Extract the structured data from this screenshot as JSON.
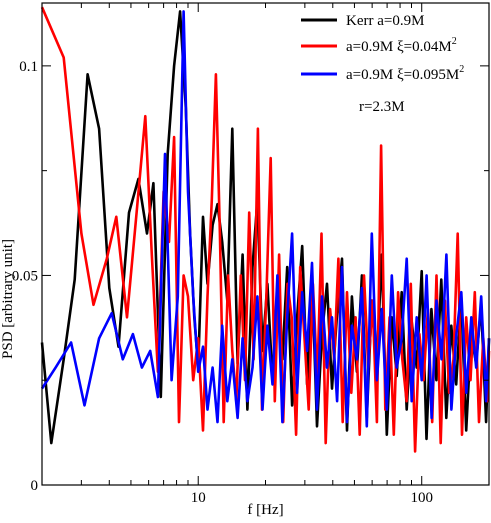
{
  "chart_data": {
    "type": "line",
    "xscale": "log",
    "xlim": [
      2,
      200
    ],
    "ylim": [
      0,
      0.115
    ],
    "xlabel": "f [Hz]",
    "ylabel": "PSD [arbitrary unit]",
    "grid": false,
    "legend_position": "top-right",
    "x_ticks": [
      {
        "value": 10,
        "label": "10"
      },
      {
        "value": 100,
        "label": "100"
      }
    ],
    "y_ticks": [
      {
        "value": 0,
        "label": "0"
      },
      {
        "value": 0.05,
        "label": "0.05"
      },
      {
        "value": 0.1,
        "label": "0.1"
      }
    ],
    "annotations": [
      {
        "text": "r=2.3M"
      }
    ],
    "series": [
      {
        "name_main": "Kerr a=0.9M",
        "name_sup": "",
        "color": "#000000",
        "x": [
          2.0,
          2.2,
          2.5,
          2.8,
          3.2,
          3.6,
          4.0,
          4.4,
          4.9,
          5.4,
          5.9,
          6.3,
          6.8,
          7.3,
          7.8,
          8.3,
          8.8,
          9.2,
          9.6,
          10.0,
          10.5,
          11.0,
          11.6,
          12.2,
          12.8,
          13.5,
          14.2,
          15.0,
          15.8,
          16.6,
          17.5,
          18.4,
          19.4,
          20.4,
          21.5,
          22.6,
          23.8,
          25.0,
          26.3,
          27.7,
          29.2,
          30.7,
          32.3,
          34.0,
          35.8,
          37.7,
          39.7,
          41.8,
          44.0,
          46.3,
          48.7,
          51.3,
          54.0,
          56.8,
          59.8,
          63.0,
          66.3,
          69.8,
          73.5,
          77.3,
          81.4,
          85.7,
          90.2,
          95.0,
          100.0,
          105.0,
          110.5,
          116.3,
          122.4,
          128.8,
          135.6,
          142.7,
          150.2,
          158.1,
          166.4,
          175.2,
          184.4,
          194.1,
          200.0
        ],
        "values": [
          0.034,
          0.01,
          0.03,
          0.049,
          0.098,
          0.085,
          0.047,
          0.033,
          0.065,
          0.073,
          0.06,
          0.072,
          0.021,
          0.079,
          0.1,
          0.113,
          0.09,
          0.06,
          0.04,
          0.028,
          0.064,
          0.048,
          0.062,
          0.067,
          0.058,
          0.044,
          0.085,
          0.029,
          0.055,
          0.018,
          0.052,
          0.068,
          0.032,
          0.048,
          0.025,
          0.045,
          0.03,
          0.052,
          0.019,
          0.04,
          0.057,
          0.024,
          0.05,
          0.014,
          0.036,
          0.048,
          0.023,
          0.041,
          0.054,
          0.013,
          0.045,
          0.027,
          0.05,
          0.016,
          0.044,
          0.03,
          0.055,
          0.012,
          0.04,
          0.026,
          0.046,
          0.018,
          0.039,
          0.028,
          0.051,
          0.011,
          0.042,
          0.025,
          0.049,
          0.016,
          0.038,
          0.024,
          0.045,
          0.013,
          0.036,
          0.029,
          0.043,
          0.015,
          0.035
        ]
      },
      {
        "name_main": "a=0.9M   ξ=0.04M",
        "name_sup": "2",
        "color": "#ff0000",
        "x": [
          2.0,
          2.5,
          3.0,
          3.4,
          3.9,
          4.3,
          4.8,
          5.3,
          5.8,
          6.2,
          6.6,
          7.0,
          7.4,
          7.8,
          8.2,
          8.6,
          9.0,
          9.5,
          10.0,
          10.5,
          11.0,
          11.5,
          12.0,
          12.5,
          13.0,
          13.6,
          14.2,
          14.8,
          15.5,
          16.2,
          16.9,
          17.7,
          18.5,
          19.3,
          20.2,
          21.1,
          22.0,
          23.0,
          24.0,
          25.1,
          26.2,
          27.4,
          28.6,
          29.9,
          31.2,
          32.6,
          34.1,
          35.6,
          37.2,
          38.9,
          40.6,
          42.4,
          44.3,
          46.3,
          48.4,
          50.6,
          52.8,
          55.2,
          57.7,
          60.3,
          63.0,
          65.8,
          68.7,
          71.8,
          75.0,
          78.4,
          81.9,
          85.6,
          89.4,
          93.4,
          97.6,
          102.0,
          106.6,
          111.4,
          116.4,
          121.6,
          127.0,
          132.7,
          138.7,
          144.9,
          151.4,
          158.2,
          165.3,
          172.7,
          180.4,
          188.5,
          196.9,
          200.0
        ],
        "values": [
          0.114,
          0.102,
          0.06,
          0.043,
          0.054,
          0.064,
          0.04,
          0.065,
          0.088,
          0.055,
          0.027,
          0.07,
          0.058,
          0.083,
          0.015,
          0.05,
          0.045,
          0.025,
          0.035,
          0.013,
          0.045,
          0.068,
          0.098,
          0.06,
          0.015,
          0.05,
          0.032,
          0.02,
          0.05,
          0.025,
          0.065,
          0.03,
          0.085,
          0.018,
          0.046,
          0.078,
          0.02,
          0.055,
          0.015,
          0.048,
          0.04,
          0.012,
          0.052,
          0.035,
          0.018,
          0.048,
          0.025,
          0.06,
          0.01,
          0.042,
          0.03,
          0.054,
          0.015,
          0.046,
          0.022,
          0.04,
          0.012,
          0.05,
          0.028,
          0.044,
          0.015,
          0.081,
          0.018,
          0.04,
          0.012,
          0.046,
          0.03,
          0.02,
          0.048,
          0.008,
          0.036,
          0.025,
          0.042,
          0.015,
          0.05,
          0.01,
          0.044,
          0.022,
          0.03,
          0.06,
          0.012,
          0.04,
          0.025,
          0.046,
          0.015,
          0.035,
          0.02,
          0.032
        ]
      },
      {
        "name_main": "a=0.9M   ξ=0.095M",
        "name_sup": "2",
        "color": "#0000ff",
        "x": [
          2.0,
          2.3,
          2.7,
          3.1,
          3.6,
          4.1,
          4.6,
          5.1,
          5.6,
          6.1,
          6.6,
          7.1,
          7.6,
          8.1,
          8.6,
          9.0,
          9.5,
          10.0,
          10.5,
          11.0,
          11.6,
          12.2,
          12.8,
          13.5,
          14.2,
          15.0,
          15.8,
          16.6,
          17.5,
          18.4,
          19.4,
          20.4,
          21.5,
          22.6,
          23.8,
          25.0,
          26.3,
          27.7,
          29.2,
          30.7,
          32.3,
          34.0,
          35.8,
          37.7,
          39.7,
          41.8,
          44.0,
          46.3,
          48.7,
          51.3,
          54.0,
          56.8,
          59.8,
          63.0,
          66.3,
          69.8,
          73.5,
          77.3,
          81.4,
          85.7,
          90.2,
          95.0,
          100.0,
          105.2,
          110.7,
          116.5,
          122.6,
          129.0,
          135.8,
          142.9,
          150.4,
          158.3,
          166.6,
          175.3,
          184.5,
          194.2,
          200.0
        ],
        "values": [
          0.023,
          0.028,
          0.034,
          0.019,
          0.035,
          0.041,
          0.03,
          0.036,
          0.028,
          0.032,
          0.021,
          0.079,
          0.025,
          0.045,
          0.113,
          0.07,
          0.045,
          0.027,
          0.033,
          0.018,
          0.028,
          0.015,
          0.038,
          0.02,
          0.03,
          0.016,
          0.035,
          0.02,
          0.028,
          0.045,
          0.018,
          0.038,
          0.024,
          0.05,
          0.015,
          0.04,
          0.06,
          0.022,
          0.046,
          0.032,
          0.053,
          0.018,
          0.045,
          0.028,
          0.04,
          0.02,
          0.052,
          0.015,
          0.038,
          0.03,
          0.047,
          0.014,
          0.06,
          0.025,
          0.042,
          0.018,
          0.05,
          0.028,
          0.035,
          0.054,
          0.02,
          0.04,
          0.025,
          0.05,
          0.016,
          0.044,
          0.03,
          0.055,
          0.018,
          0.036,
          0.046,
          0.022,
          0.04,
          0.028,
          0.045,
          0.02,
          0.035
        ]
      }
    ]
  }
}
